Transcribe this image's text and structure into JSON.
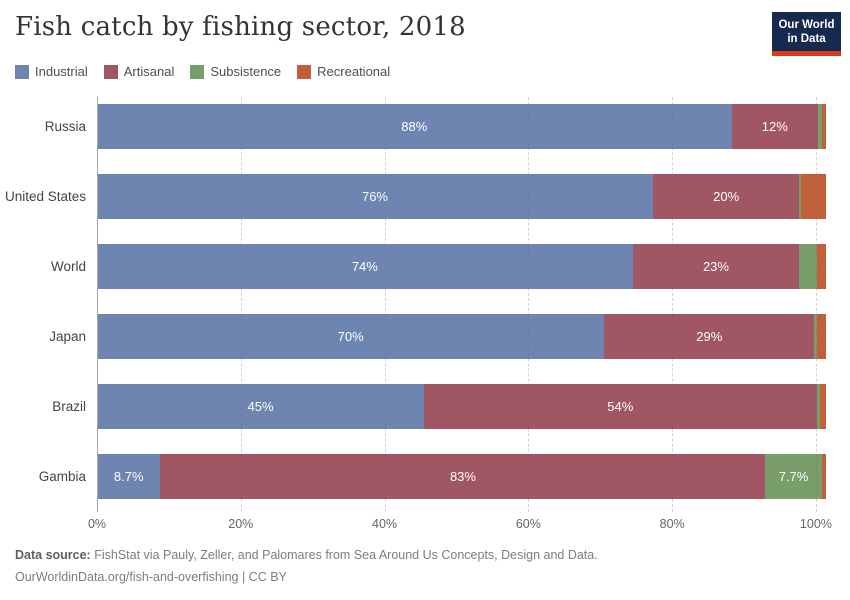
{
  "header": {
    "title": "Fish catch by fishing sector, 2018",
    "logo": {
      "line1": "Our World",
      "line2": "in Data",
      "bg": "#16294f",
      "accent": "#dc3a1c"
    }
  },
  "legend": [
    {
      "key": "industrial",
      "label": "Industrial"
    },
    {
      "key": "artisanal",
      "label": "Artisanal"
    },
    {
      "key": "subsistence",
      "label": "Subsistence"
    },
    {
      "key": "recreational",
      "label": "Recreational"
    }
  ],
  "chart_data": {
    "type": "bar",
    "orientation": "horizontal",
    "stacked": true,
    "unit": "%",
    "title": "Fish catch by fishing sector, 2018",
    "axis_max": 101.4,
    "grid": "dashed-vertical",
    "legend_position": "top-left",
    "colors": {
      "industrial": "#6e85b2",
      "artisanal": "#a05763",
      "subsistence": "#7a9e6a",
      "recreational": "#c2603b"
    },
    "x_ticks": [
      {
        "value": 0,
        "label": "0%"
      },
      {
        "value": 20,
        "label": "20%"
      },
      {
        "value": 40,
        "label": "40%"
      },
      {
        "value": 60,
        "label": "60%"
      },
      {
        "value": 80,
        "label": "80%"
      },
      {
        "value": 100,
        "label": "100%"
      }
    ],
    "rows": [
      {
        "category": "Russia",
        "segments": [
          {
            "key": "industrial",
            "value": 88,
            "label": "88%"
          },
          {
            "key": "artisanal",
            "value": 12,
            "label": "12%"
          },
          {
            "key": "subsistence",
            "value": 0.6,
            "label": null
          },
          {
            "key": "recreational",
            "value": 0.5,
            "label": null
          }
        ]
      },
      {
        "category": "United States",
        "segments": [
          {
            "key": "industrial",
            "value": 76,
            "label": "76%"
          },
          {
            "key": "artisanal",
            "value": 20,
            "label": "20%"
          },
          {
            "key": "subsistence",
            "value": 0.25,
            "label": null
          },
          {
            "key": "recreational",
            "value": 3.4,
            "label": null
          }
        ]
      },
      {
        "category": "World",
        "segments": [
          {
            "key": "industrial",
            "value": 74,
            "label": "74%"
          },
          {
            "key": "artisanal",
            "value": 23,
            "label": "23%"
          },
          {
            "key": "subsistence",
            "value": 2.5,
            "label": null
          },
          {
            "key": "recreational",
            "value": 1.2,
            "label": null
          }
        ]
      },
      {
        "category": "Japan",
        "segments": [
          {
            "key": "industrial",
            "value": 70,
            "label": "70%"
          },
          {
            "key": "artisanal",
            "value": 29,
            "label": "29%"
          },
          {
            "key": "subsistence",
            "value": 0.4,
            "label": null
          },
          {
            "key": "recreational",
            "value": 1.2,
            "label": null
          }
        ]
      },
      {
        "category": "Brazil",
        "segments": [
          {
            "key": "industrial",
            "value": 45,
            "label": "45%"
          },
          {
            "key": "artisanal",
            "value": 54,
            "label": "54%"
          },
          {
            "key": "subsistence",
            "value": 0.5,
            "label": null
          },
          {
            "key": "recreational",
            "value": 0.8,
            "label": null
          }
        ]
      },
      {
        "category": "Gambia",
        "segments": [
          {
            "key": "industrial",
            "value": 8.7,
            "label": "8.7%"
          },
          {
            "key": "artisanal",
            "value": 83,
            "label": "83%"
          },
          {
            "key": "subsistence",
            "value": 7.7,
            "label": "7.7%"
          },
          {
            "key": "recreational",
            "value": 0.6,
            "label": null
          }
        ]
      }
    ]
  },
  "footer": {
    "source_label": "Data source:",
    "source_text": " FishStat via Pauly, Zeller, and Palomares from Sea Around Us Concepts, Design and Data.",
    "link_line": "OurWorldinData.org/fish-and-overfishing | CC BY"
  }
}
